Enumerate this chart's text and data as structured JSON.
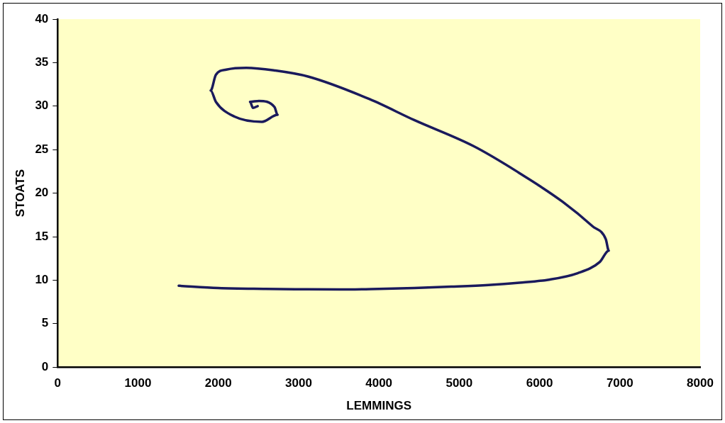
{
  "chart_data": {
    "type": "line",
    "xlabel": "LEMMINGS",
    "ylabel": "STOATS",
    "xlim": [
      0,
      8000
    ],
    "xticks": [
      0,
      1000,
      2000,
      3000,
      4000,
      5000,
      6000,
      7000,
      8000
    ],
    "ylim": [
      0,
      40
    ],
    "yticks": [
      0,
      5,
      10,
      15,
      20,
      25,
      30,
      35,
      40
    ],
    "grid": false,
    "legend": false,
    "marker": "none",
    "line_style": "solid",
    "series": [
      {
        "color": "#1a1a5c",
        "x": [
          1507,
          2000,
          2590,
          3100,
          3514,
          4000,
          4439,
          4900,
          5364,
          5750,
          6104,
          6474,
          6751,
          6862,
          6825,
          6659,
          6289,
          5734,
          5179,
          4439,
          3884,
          3117,
          2700,
          2349,
          2100,
          1970,
          1905,
          1970,
          2201,
          2543,
          2738,
          2700,
          2506,
          2395,
          2432,
          2490
        ],
        "values": [
          9.36,
          9.1,
          9.0,
          8.95,
          8.93,
          9.0,
          9.1,
          9.25,
          9.44,
          9.7,
          10.04,
          10.8,
          12.1,
          13.4,
          14.7,
          16.2,
          19.0,
          22.4,
          25.4,
          28.4,
          30.8,
          33.4,
          34.1,
          34.4,
          34.2,
          33.6,
          31.8,
          30.5,
          28.8,
          28.2,
          29.0,
          29.9,
          30.6,
          30.5,
          29.8,
          30.0
        ]
      }
    ]
  }
}
